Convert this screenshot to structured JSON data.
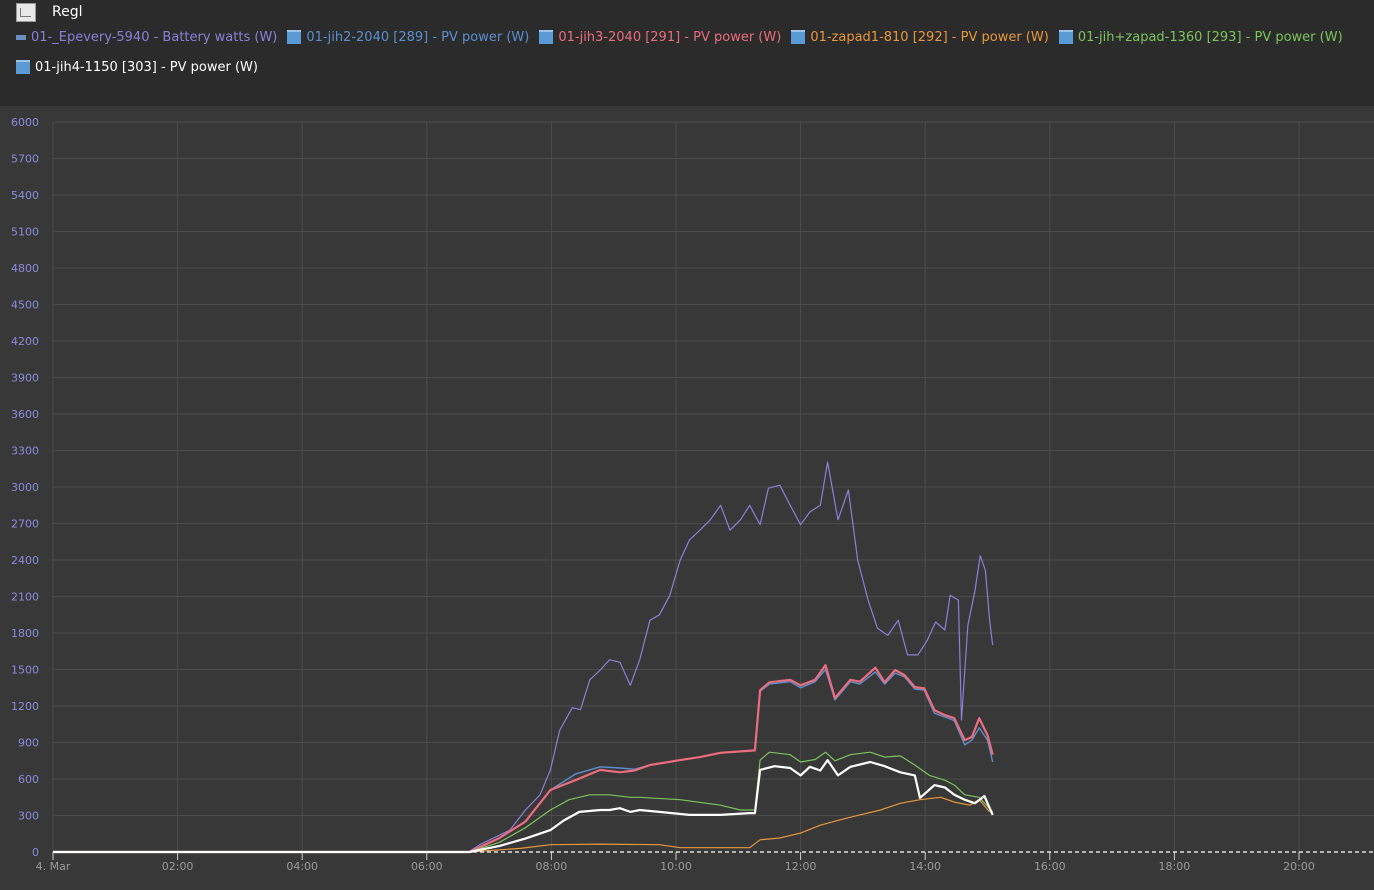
{
  "window": {
    "title": "Regl"
  },
  "chart_data": {
    "type": "line",
    "title": "Regl",
    "xlabel": "",
    "ylabel": "",
    "x_axis": {
      "type": "time",
      "range": [
        "00:00",
        "21:15"
      ],
      "ticks": [
        "4. Mar",
        "02:00",
        "04:00",
        "06:00",
        "08:00",
        "10:00",
        "12:00",
        "14:00",
        "16:00",
        "18:00",
        "20:00"
      ]
    },
    "ylim": [
      0,
      6000
    ],
    "y_ticks": [
      0,
      300,
      600,
      900,
      1200,
      1500,
      1800,
      2100,
      2400,
      2700,
      3000,
      3300,
      3600,
      3900,
      4200,
      4500,
      4800,
      5100,
      5400,
      5700,
      6000
    ],
    "grid": true,
    "legend_placement": "top",
    "series": [
      {
        "name": "01-_Epevery-5940 - Battery watts (W)",
        "color": "#8b80d8",
        "width": 1.2,
        "icon": "battery-icon",
        "points": [
          [
            "00:00",
            0
          ],
          [
            "06:40",
            0
          ],
          [
            "06:51",
            60
          ],
          [
            "07:20",
            180
          ],
          [
            "07:35",
            345
          ],
          [
            "07:49",
            470
          ],
          [
            "07:59",
            675
          ],
          [
            "08:08",
            1000
          ],
          [
            "08:20",
            1185
          ],
          [
            "08:28",
            1170
          ],
          [
            "08:37",
            1415
          ],
          [
            "08:47",
            1495
          ],
          [
            "08:56",
            1580
          ],
          [
            "09:06",
            1560
          ],
          [
            "09:16",
            1370
          ],
          [
            "09:25",
            1580
          ],
          [
            "09:35",
            1905
          ],
          [
            "09:44",
            1950
          ],
          [
            "09:54",
            2110
          ],
          [
            "10:04",
            2400
          ],
          [
            "10:13",
            2565
          ],
          [
            "10:23",
            2645
          ],
          [
            "10:33",
            2730
          ],
          [
            "10:43",
            2850
          ],
          [
            "10:52",
            2645
          ],
          [
            "11:02",
            2730
          ],
          [
            "11:11",
            2850
          ],
          [
            "11:21",
            2690
          ],
          [
            "11:29",
            2990
          ],
          [
            "11:40",
            3015
          ],
          [
            "11:50",
            2850
          ],
          [
            "12:00",
            2690
          ],
          [
            "12:09",
            2795
          ],
          [
            "12:19",
            2850
          ],
          [
            "12:26",
            3205
          ],
          [
            "12:36",
            2730
          ],
          [
            "12:46",
            2975
          ],
          [
            "12:55",
            2400
          ],
          [
            "13:05",
            2070
          ],
          [
            "13:14",
            1840
          ],
          [
            "13:24",
            1780
          ],
          [
            "13:34",
            1905
          ],
          [
            "13:43",
            1620
          ],
          [
            "13:53",
            1620
          ],
          [
            "14:02",
            1740
          ],
          [
            "14:10",
            1890
          ],
          [
            "14:19",
            1825
          ],
          [
            "14:24",
            2110
          ],
          [
            "14:32",
            2070
          ],
          [
            "14:35",
            1085
          ],
          [
            "14:41",
            1860
          ],
          [
            "14:48",
            2150
          ],
          [
            "14:53",
            2435
          ],
          [
            "14:58",
            2315
          ],
          [
            "15:02",
            1905
          ],
          [
            "15:05",
            1700
          ]
        ]
      },
      {
        "name": "01-jih2-2040 [289] - PV power (W)",
        "color": "#5b8fd0",
        "width": 1.4,
        "icon": "pv-panel-icon",
        "points": [
          [
            "00:00",
            0
          ],
          [
            "06:41",
            0
          ],
          [
            "07:10",
            115
          ],
          [
            "07:35",
            250
          ],
          [
            "07:59",
            510
          ],
          [
            "08:23",
            640
          ],
          [
            "08:47",
            700
          ],
          [
            "09:06",
            690
          ],
          [
            "09:20",
            680
          ],
          [
            "09:35",
            715
          ],
          [
            "10:04",
            755
          ],
          [
            "10:23",
            780
          ],
          [
            "10:43",
            815
          ],
          [
            "11:16",
            835
          ],
          [
            "11:21",
            1320
          ],
          [
            "11:30",
            1380
          ],
          [
            "11:50",
            1400
          ],
          [
            "12:00",
            1350
          ],
          [
            "12:14",
            1400
          ],
          [
            "12:24",
            1500
          ],
          [
            "12:33",
            1250
          ],
          [
            "12:48",
            1400
          ],
          [
            "12:57",
            1380
          ],
          [
            "13:12",
            1480
          ],
          [
            "13:21",
            1380
          ],
          [
            "13:31",
            1470
          ],
          [
            "13:40",
            1440
          ],
          [
            "13:50",
            1340
          ],
          [
            "13:59",
            1330
          ],
          [
            "14:09",
            1140
          ],
          [
            "14:19",
            1110
          ],
          [
            "14:28",
            1080
          ],
          [
            "14:38",
            880
          ],
          [
            "14:45",
            920
          ],
          [
            "14:52",
            1020
          ],
          [
            "15:00",
            920
          ],
          [
            "15:05",
            740
          ]
        ]
      },
      {
        "name": "01-jih3-2040 [291] - PV power (W)",
        "color": "#ec6d7e",
        "width": 2.2,
        "icon": "pv-panel-icon",
        "points": [
          [
            "00:00",
            0
          ],
          [
            "06:41",
            0
          ],
          [
            "07:10",
            115
          ],
          [
            "07:35",
            250
          ],
          [
            "07:59",
            510
          ],
          [
            "08:23",
            590
          ],
          [
            "08:47",
            675
          ],
          [
            "09:06",
            655
          ],
          [
            "09:20",
            670
          ],
          [
            "09:35",
            715
          ],
          [
            "10:04",
            755
          ],
          [
            "10:23",
            780
          ],
          [
            "10:43",
            815
          ],
          [
            "11:16",
            835
          ],
          [
            "11:21",
            1330
          ],
          [
            "11:30",
            1395
          ],
          [
            "11:50",
            1415
          ],
          [
            "12:00",
            1370
          ],
          [
            "12:14",
            1415
          ],
          [
            "12:24",
            1535
          ],
          [
            "12:33",
            1265
          ],
          [
            "12:48",
            1415
          ],
          [
            "12:57",
            1400
          ],
          [
            "13:12",
            1515
          ],
          [
            "13:21",
            1395
          ],
          [
            "13:31",
            1495
          ],
          [
            "13:40",
            1455
          ],
          [
            "13:50",
            1355
          ],
          [
            "13:59",
            1345
          ],
          [
            "14:09",
            1165
          ],
          [
            "14:19",
            1125
          ],
          [
            "14:28",
            1100
          ],
          [
            "14:38",
            920
          ],
          [
            "14:45",
            945
          ],
          [
            "14:52",
            1100
          ],
          [
            "15:00",
            960
          ],
          [
            "15:05",
            800
          ]
        ]
      },
      {
        "name": "01-zapad1-810 [292] - PV power (W)",
        "color": "#e8983a",
        "width": 1.2,
        "icon": "pv-panel-icon",
        "points": [
          [
            "00:00",
            0
          ],
          [
            "06:41",
            0
          ],
          [
            "07:30",
            30
          ],
          [
            "07:59",
            60
          ],
          [
            "08:47",
            65
          ],
          [
            "09:44",
            60
          ],
          [
            "10:04",
            35
          ],
          [
            "11:11",
            35
          ],
          [
            "11:21",
            100
          ],
          [
            "11:40",
            115
          ],
          [
            "12:00",
            155
          ],
          [
            "12:19",
            220
          ],
          [
            "12:38",
            265
          ],
          [
            "12:57",
            305
          ],
          [
            "13:17",
            345
          ],
          [
            "13:36",
            400
          ],
          [
            "13:55",
            430
          ],
          [
            "14:15",
            450
          ],
          [
            "14:28",
            410
          ],
          [
            "14:43",
            385
          ],
          [
            "14:52",
            430
          ],
          [
            "15:02",
            330
          ]
        ]
      },
      {
        "name": "01-jih+zapad-1360 [293] - PV power (W)",
        "color": "#7cc45c",
        "width": 1.2,
        "icon": "pv-panel-icon",
        "points": [
          [
            "00:00",
            0
          ],
          [
            "06:41",
            0
          ],
          [
            "07:10",
            80
          ],
          [
            "07:35",
            200
          ],
          [
            "07:59",
            345
          ],
          [
            "08:17",
            430
          ],
          [
            "08:37",
            470
          ],
          [
            "08:56",
            470
          ],
          [
            "09:16",
            450
          ],
          [
            "09:25",
            450
          ],
          [
            "10:04",
            430
          ],
          [
            "10:43",
            385
          ],
          [
            "11:02",
            345
          ],
          [
            "11:16",
            345
          ],
          [
            "11:21",
            755
          ],
          [
            "11:30",
            820
          ],
          [
            "11:50",
            800
          ],
          [
            "12:00",
            740
          ],
          [
            "12:14",
            760
          ],
          [
            "12:24",
            820
          ],
          [
            "12:33",
            750
          ],
          [
            "12:48",
            800
          ],
          [
            "13:07",
            820
          ],
          [
            "13:21",
            780
          ],
          [
            "13:36",
            790
          ],
          [
            "13:50",
            715
          ],
          [
            "14:04",
            630
          ],
          [
            "14:19",
            590
          ],
          [
            "14:28",
            550
          ],
          [
            "14:38",
            470
          ],
          [
            "14:52",
            450
          ],
          [
            "15:05",
            330
          ]
        ]
      },
      {
        "name": "01-jih4-1150 [303] - PV power (W)",
        "color": "#ffffff",
        "width": 2.2,
        "icon": "pv-panel-icon",
        "points": [
          [
            "00:00",
            0
          ],
          [
            "06:41",
            0
          ],
          [
            "07:10",
            50
          ],
          [
            "07:35",
            110
          ],
          [
            "07:59",
            180
          ],
          [
            "08:12",
            260
          ],
          [
            "08:27",
            330
          ],
          [
            "08:47",
            345
          ],
          [
            "08:56",
            345
          ],
          [
            "09:06",
            360
          ],
          [
            "09:16",
            330
          ],
          [
            "09:25",
            345
          ],
          [
            "09:44",
            330
          ],
          [
            "10:13",
            305
          ],
          [
            "10:43",
            305
          ],
          [
            "11:11",
            320
          ],
          [
            "11:16",
            320
          ],
          [
            "11:21",
            675
          ],
          [
            "11:35",
            705
          ],
          [
            "11:50",
            690
          ],
          [
            "12:00",
            630
          ],
          [
            "12:09",
            700
          ],
          [
            "12:19",
            670
          ],
          [
            "12:26",
            755
          ],
          [
            "12:36",
            630
          ],
          [
            "12:48",
            700
          ],
          [
            "13:07",
            740
          ],
          [
            "13:21",
            705
          ],
          [
            "13:36",
            655
          ],
          [
            "13:50",
            630
          ],
          [
            "13:55",
            445
          ],
          [
            "14:09",
            550
          ],
          [
            "14:19",
            530
          ],
          [
            "14:28",
            470
          ],
          [
            "14:38",
            430
          ],
          [
            "14:48",
            400
          ],
          [
            "14:57",
            460
          ],
          [
            "15:05",
            305
          ]
        ]
      }
    ]
  }
}
